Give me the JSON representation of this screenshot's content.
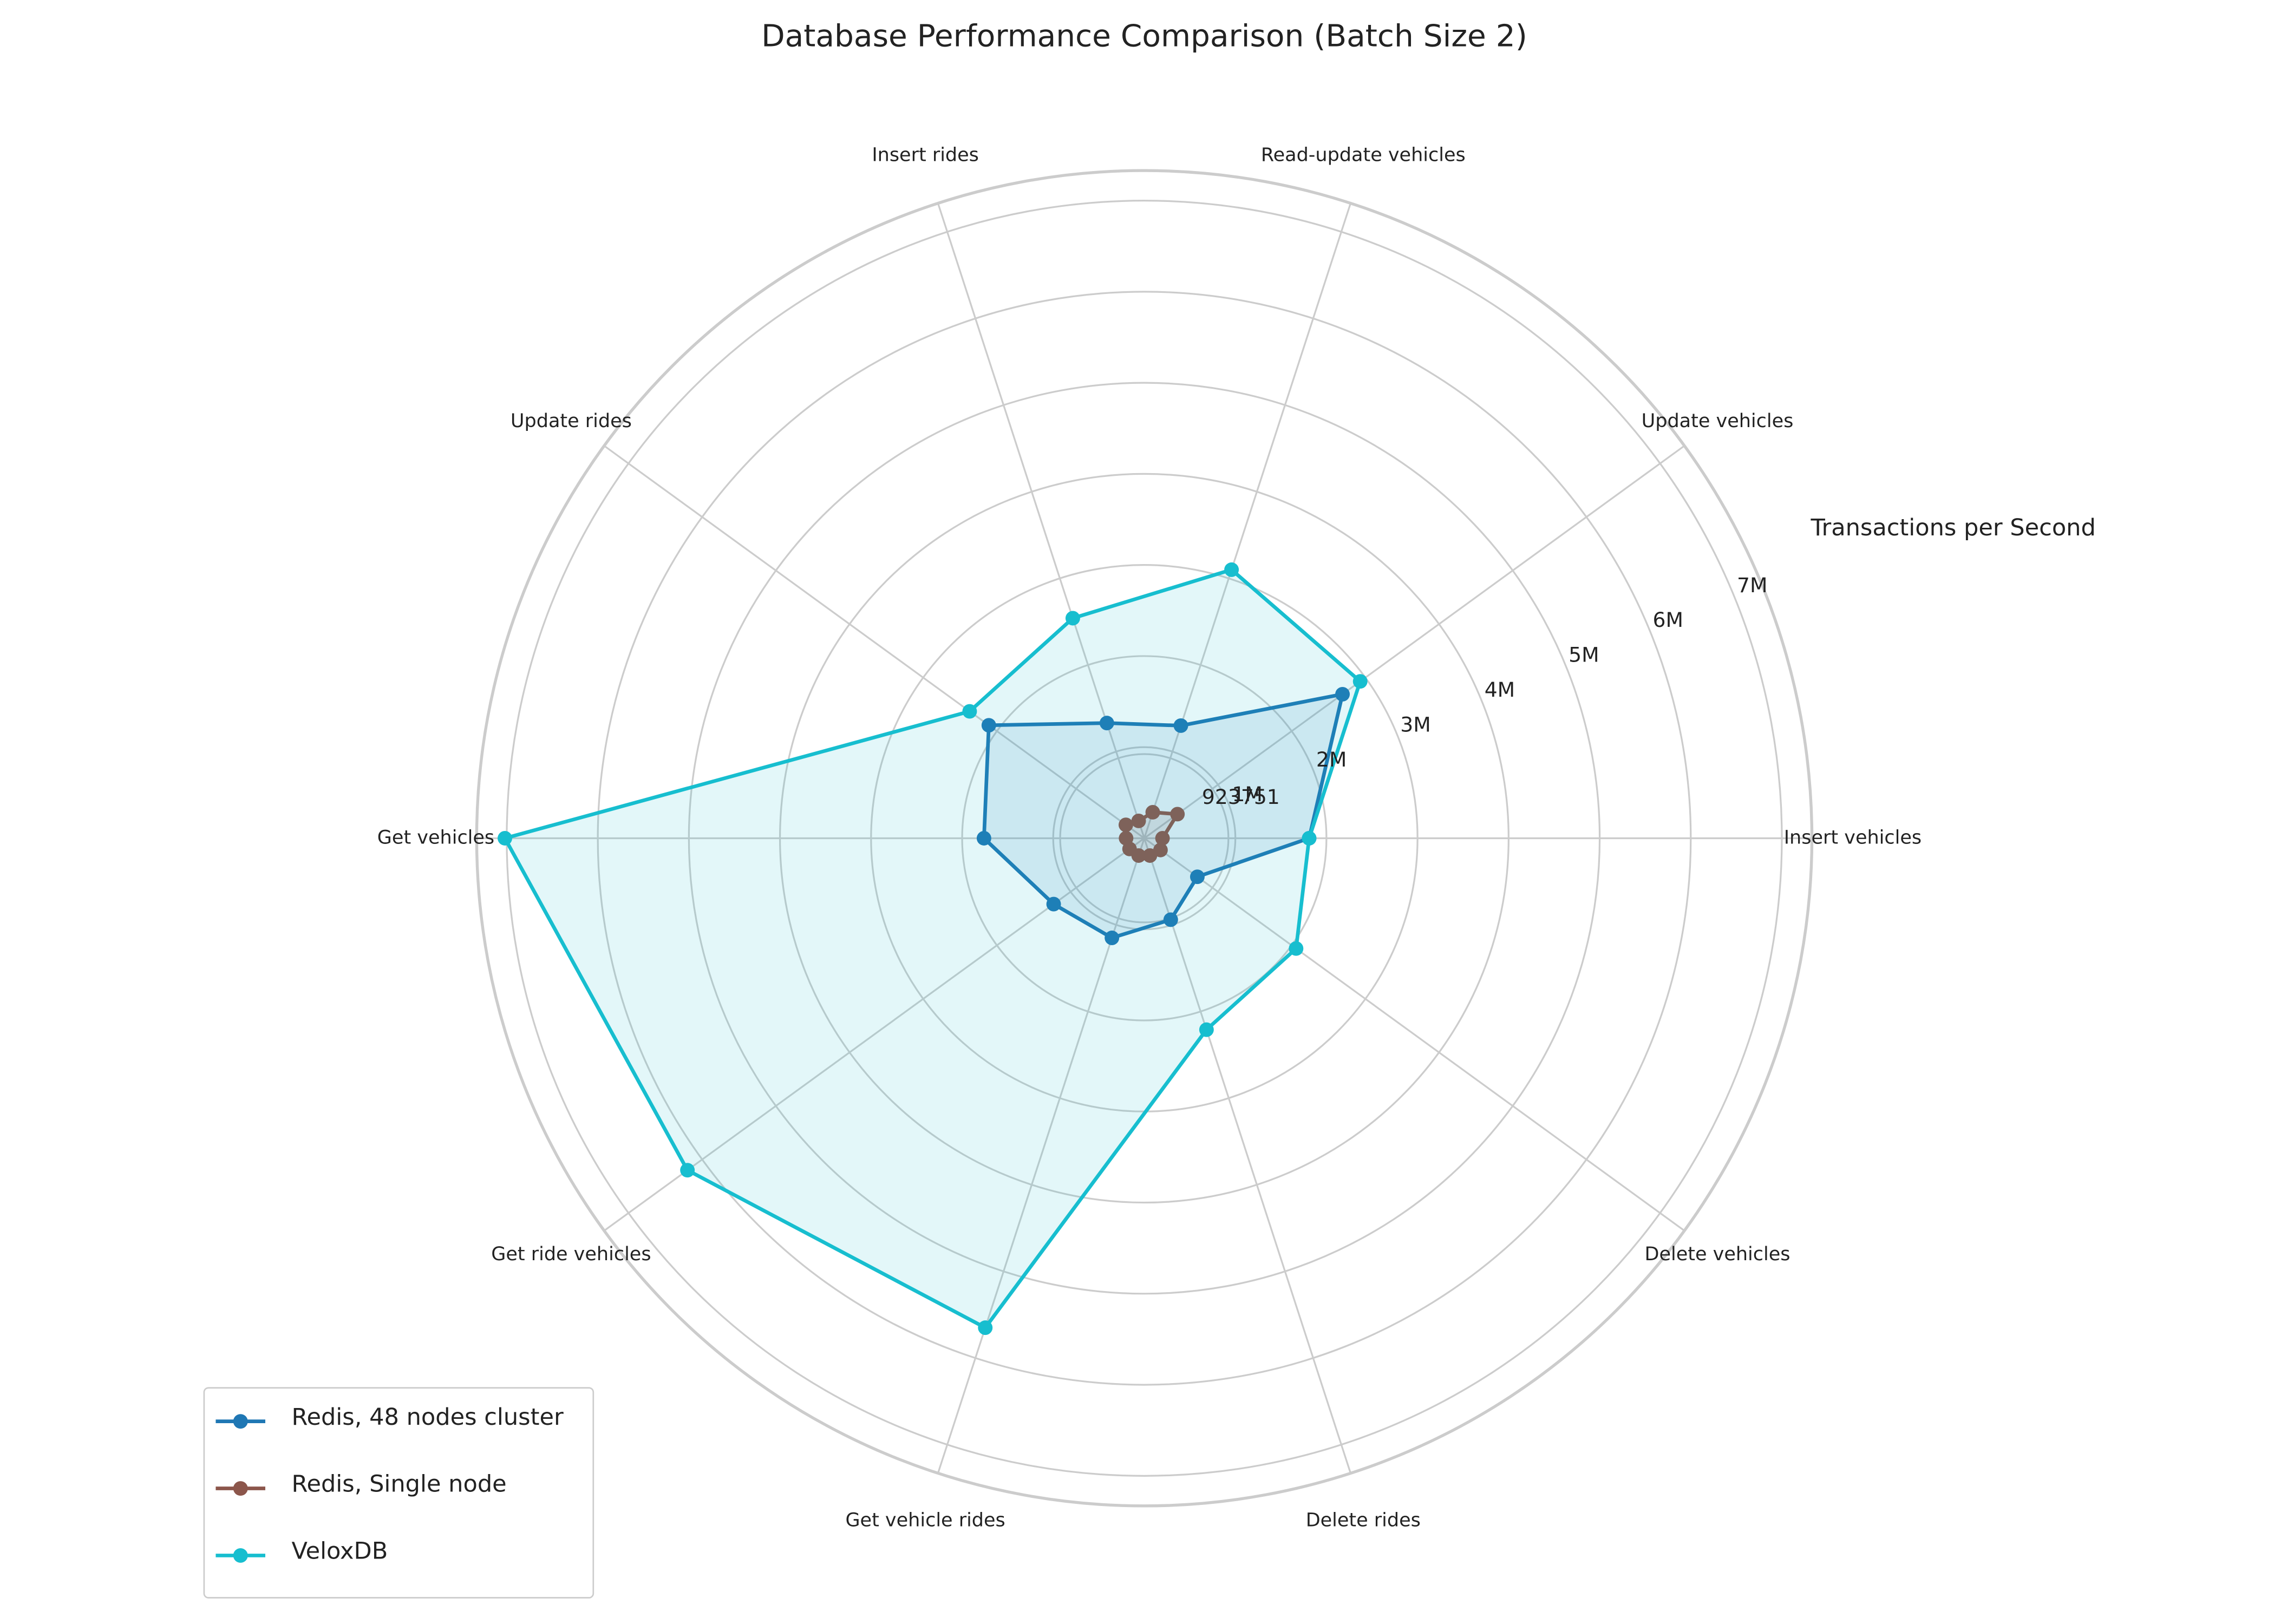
{
  "chart_data": {
    "type": "radar",
    "title": "Database Performance Comparison (Batch Size 2)",
    "ylabel": "Transactions per Second",
    "categories": [
      "Insert vehicles",
      "Update vehicles",
      "Read-update vehicles",
      "Insert rides",
      "Update rides",
      "Get vehicles",
      "Get ride vehicles",
      "Get vehicle rides",
      "Delete rides",
      "Delete vehicles"
    ],
    "series": [
      {
        "name": "Redis, 48 nodes cluster",
        "color": "#1f77b4",
        "values": [
          1810000,
          2690000,
          1300000,
          1330000,
          2110000,
          1760000,
          1230000,
          1150000,
          940000,
          720000
        ]
      },
      {
        "name": "Redis, Single node",
        "color": "#8c564b",
        "values": [
          200000,
          450000,
          300000,
          200000,
          250000,
          200000,
          200000,
          200000,
          200000,
          220000
        ]
      },
      {
        "name": "VeloxDB",
        "color": "#17becf",
        "values": [
          1810000,
          2930000,
          3100000,
          2540000,
          2370000,
          7020000,
          6200000,
          5650000,
          2210000,
          2060000
        ]
      }
    ],
    "ylim": [
      0,
      7330000
    ],
    "yticks": [
      923751,
      {
        "value": 1000000,
        "label": "1M"
      },
      {
        "value": 2000000,
        "label": "2M"
      },
      {
        "value": 3000000,
        "label": "3M"
      },
      {
        "value": 4000000,
        "label": "4M"
      },
      {
        "value": 5000000,
        "label": "5M"
      },
      {
        "value": 6000000,
        "label": "6M"
      },
      {
        "value": 7000000,
        "label": "7M"
      }
    ],
    "grid": true,
    "legend": "lower left"
  }
}
